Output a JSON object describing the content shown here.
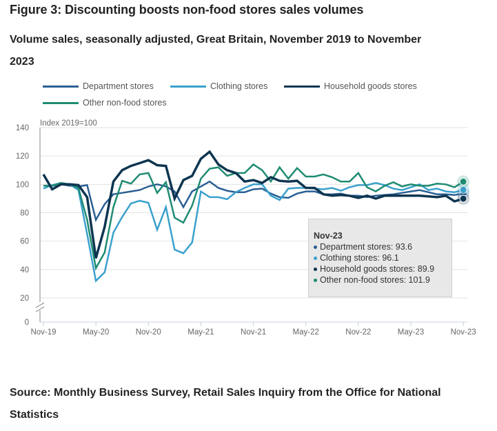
{
  "figure": {
    "title": "Figure 3: Discounting boosts non-food stores sales volumes",
    "subtitle": "Volume sales, seasonally adjusted, Great Britain, November 2019 to November 2023",
    "source": "Source: Monthly Business Survey, Retail Sales Inquiry from the Office for National Statistics"
  },
  "tooltip": {
    "header": "Nov-23",
    "rows": [
      {
        "label": "Department stores: 93.6",
        "color": "#2a5f93"
      },
      {
        "label": "Clothing stores: 96.1",
        "color": "#3aa0cc"
      },
      {
        "label": "Household goods stores: 89.9",
        "color": "#0e3550"
      },
      {
        "label": "Other non-food stores: 101.9",
        "color": "#1e8b72"
      }
    ]
  },
  "chart_data": {
    "type": "line",
    "title": "Figure 3: Discounting boosts non-food stores sales volumes",
    "subtitle": "Volume sales, seasonally adjusted, Great Britain, November 2019 to November 2023",
    "xlabel": "",
    "ylabel": "Index 2019=100",
    "ylim": [
      0,
      140
    ],
    "yticks": [
      0,
      20,
      40,
      60,
      80,
      100,
      120,
      140
    ],
    "y_axis_break": "between 0 and 20",
    "grid": true,
    "legend_position": "top",
    "x_start": "Nov-19",
    "x_end": "Nov-23",
    "xtick_labels": [
      "Nov-19",
      "May-20",
      "Nov-20",
      "May-21",
      "Nov-21",
      "May-22",
      "Nov-22",
      "May-23",
      "Nov-23"
    ],
    "xtick_every_months": 6,
    "series": [
      {
        "name": "Department stores",
        "color": "#2a5f93",
        "values": [
          99,
          99,
          100,
          99,
          98.5,
          99.5,
          75,
          86,
          93,
          94,
          95,
          96,
          98.5,
          100,
          98.5,
          95,
          84,
          95,
          98.5,
          102,
          97.5,
          95.5,
          94.5,
          94.5,
          96.5,
          97,
          93.5,
          91,
          90.5,
          93.5,
          95,
          95,
          93,
          93,
          93.5,
          92,
          92,
          91,
          92,
          92.5,
          93,
          94,
          95,
          96,
          94.5,
          93,
          93,
          92.5,
          93.6
        ]
      },
      {
        "name": "Clothing stores",
        "color": "#3aa0cc",
        "values": [
          97,
          99.5,
          101,
          100,
          96,
          65,
          32,
          38,
          66,
          77,
          86.5,
          88.5,
          87,
          68,
          84,
          54,
          51.5,
          59,
          95,
          91,
          91,
          89.5,
          94.5,
          97.5,
          100,
          100,
          92,
          89,
          97,
          97.5,
          97.5,
          97,
          96.5,
          97.5,
          95.5,
          98,
          99.5,
          99.5,
          101,
          99.5,
          97,
          96,
          98,
          100,
          96,
          97,
          95,
          94.5,
          96.1
        ]
      },
      {
        "name": "Household goods stores",
        "color": "#0e3550",
        "values": [
          107,
          96.5,
          100,
          100,
          99.5,
          91,
          48,
          70,
          102,
          110,
          113,
          115,
          117,
          113.5,
          113,
          90,
          103,
          106,
          118,
          123,
          114,
          110,
          108,
          102,
          103,
          101,
          105,
          102.5,
          102,
          102.5,
          97.5,
          97.5,
          93,
          92,
          92.5,
          92,
          90.5,
          92,
          90,
          92,
          92,
          92,
          92,
          92,
          91.5,
          91,
          92,
          88,
          89.9
        ]
      },
      {
        "name": "Other non-food stores",
        "color": "#1e8b72",
        "values": [
          99,
          99,
          101,
          100,
          97.5,
          75,
          41,
          52,
          84,
          102.5,
          100.5,
          107,
          108,
          94,
          101.5,
          76.5,
          73,
          85,
          104,
          111,
          112,
          106,
          108,
          108,
          114,
          110,
          102,
          112,
          104,
          111.5,
          105.5,
          105.5,
          107,
          105,
          102,
          102,
          108,
          98,
          95,
          99,
          101.5,
          98.5,
          100,
          99,
          99,
          100.5,
          100,
          98,
          101.9
        ]
      }
    ]
  }
}
